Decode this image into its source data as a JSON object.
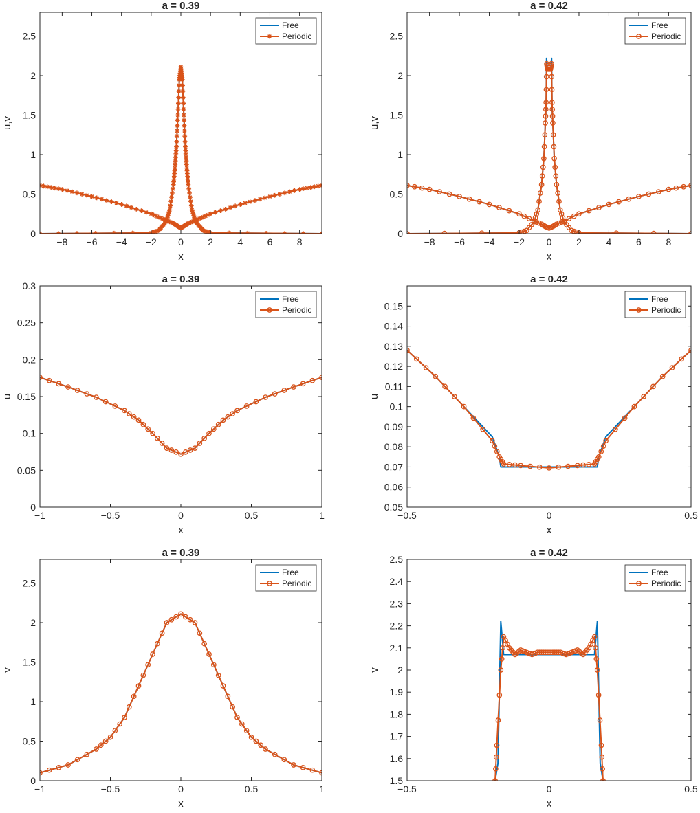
{
  "colors": {
    "free": "#0072BD",
    "periodic": "#D95319",
    "axes": "#262626",
    "background": "#ffffff"
  },
  "chart_data": [
    {
      "type": "line",
      "title": "a = 0.39",
      "xlabel": "x",
      "ylabel": "u,v",
      "xlim": [
        -9.5,
        9.5
      ],
      "ylim": [
        0,
        2.8
      ],
      "xticks": [
        -8,
        -6,
        -4,
        -2,
        0,
        2,
        4,
        6,
        8
      ],
      "yticks": [
        0,
        0.5,
        1,
        1.5,
        2,
        2.5
      ],
      "grid": false,
      "legend_position": "top-right",
      "legend": [
        "Free",
        "Periodic"
      ],
      "series": [
        {
          "name": "Free",
          "marker": "none",
          "curves": [
            {
              "x": [
                -9.5,
                -8,
                -6,
                -4,
                -2,
                -1,
                -0.5,
                -0.25,
                0,
                0.25,
                0.5,
                1,
                2,
                4,
                6,
                8,
                9.5
              ],
              "y": [
                0.61,
                0.56,
                0.47,
                0.37,
                0.25,
                0.17,
                0.13,
                0.1,
                0.07,
                0.1,
                0.13,
                0.17,
                0.25,
                0.37,
                0.47,
                0.56,
                0.61
              ]
            },
            {
              "x": [
                -9.5,
                -2,
                -1.5,
                -1,
                -0.75,
                -0.5,
                -0.4,
                -0.3,
                -0.2,
                -0.1,
                0,
                0.1,
                0.2,
                0.3,
                0.4,
                0.5,
                0.75,
                1,
                1.5,
                2,
                9.5
              ],
              "y": [
                0,
                0.01,
                0.04,
                0.15,
                0.3,
                0.62,
                0.83,
                1.1,
                1.5,
                1.95,
                2.11,
                1.95,
                1.5,
                1.1,
                0.83,
                0.62,
                0.3,
                0.15,
                0.04,
                0.01,
                0
              ]
            }
          ]
        },
        {
          "name": "Periodic",
          "marker": "star",
          "curves": [
            {
              "x": [
                -9.5,
                -8,
                -6,
                -4,
                -2,
                -1,
                -0.5,
                -0.25,
                0,
                0.25,
                0.5,
                1,
                2,
                4,
                6,
                8,
                9.5
              ],
              "y": [
                0.61,
                0.56,
                0.47,
                0.37,
                0.25,
                0.17,
                0.13,
                0.1,
                0.07,
                0.1,
                0.13,
                0.17,
                0.25,
                0.37,
                0.47,
                0.56,
                0.61
              ]
            },
            {
              "x": [
                -9.5,
                -2,
                -1.5,
                -1,
                -0.75,
                -0.5,
                -0.4,
                -0.3,
                -0.2,
                -0.1,
                0,
                0.1,
                0.2,
                0.3,
                0.4,
                0.5,
                0.75,
                1,
                1.5,
                2,
                9.5
              ],
              "y": [
                0,
                0.01,
                0.04,
                0.15,
                0.3,
                0.62,
                0.83,
                1.1,
                1.5,
                1.95,
                2.11,
                1.95,
                1.5,
                1.1,
                0.83,
                0.62,
                0.3,
                0.15,
                0.04,
                0.01,
                0
              ]
            }
          ]
        }
      ]
    },
    {
      "type": "line",
      "title": "a = 0.42",
      "xlabel": "x",
      "ylabel": "u,v",
      "xlim": [
        -9.5,
        9.5
      ],
      "ylim": [
        0,
        2.8
      ],
      "xticks": [
        -8,
        -6,
        -4,
        -2,
        0,
        2,
        4,
        6,
        8
      ],
      "yticks": [
        0,
        0.5,
        1,
        1.5,
        2,
        2.5
      ],
      "grid": false,
      "legend_position": "top-right",
      "legend": [
        "Free",
        "Periodic"
      ],
      "series": [
        {
          "name": "Free",
          "marker": "none",
          "curves": [
            {
              "x": [
                -9.5,
                -8,
                -6,
                -4,
                -2,
                -1,
                -0.5,
                -0.25,
                0,
                0.25,
                0.5,
                1,
                2,
                4,
                6,
                8,
                9.5
              ],
              "y": [
                0.61,
                0.56,
                0.47,
                0.37,
                0.25,
                0.16,
                0.12,
                0.09,
                0.07,
                0.09,
                0.12,
                0.16,
                0.25,
                0.37,
                0.47,
                0.56,
                0.61
              ]
            },
            {
              "x": [
                -9.5,
                -2,
                -1.5,
                -1,
                -0.75,
                -0.5,
                -0.35,
                -0.25,
                -0.2,
                -0.17,
                -0.1,
                0,
                0.1,
                0.17,
                0.2,
                0.25,
                0.35,
                0.5,
                0.75,
                1,
                1.5,
                2,
                9.5
              ],
              "y": [
                0,
                0.01,
                0.04,
                0.15,
                0.3,
                0.62,
                0.95,
                1.4,
                1.6,
                2.22,
                2.07,
                2.07,
                2.07,
                2.22,
                1.6,
                1.4,
                0.95,
                0.62,
                0.3,
                0.15,
                0.04,
                0.01,
                0
              ]
            }
          ]
        },
        {
          "name": "Periodic",
          "marker": "circle",
          "curves": [
            {
              "x": [
                -9.5,
                -8,
                -6,
                -4,
                -2,
                -1,
                -0.5,
                -0.25,
                0,
                0.25,
                0.5,
                1,
                2,
                4,
                6,
                8,
                9.5
              ],
              "y": [
                0.61,
                0.56,
                0.47,
                0.37,
                0.25,
                0.16,
                0.12,
                0.09,
                0.07,
                0.09,
                0.12,
                0.16,
                0.25,
                0.37,
                0.47,
                0.56,
                0.61
              ]
            },
            {
              "x": [
                -9.5,
                -2,
                -1.5,
                -1,
                -0.75,
                -0.5,
                -0.35,
                -0.25,
                -0.2,
                -0.16,
                -0.1,
                0,
                0.1,
                0.16,
                0.2,
                0.25,
                0.35,
                0.5,
                0.75,
                1,
                1.5,
                2,
                9.5
              ],
              "y": [
                0,
                0.01,
                0.04,
                0.15,
                0.3,
                0.62,
                0.95,
                1.4,
                1.66,
                2.15,
                2.08,
                2.08,
                2.08,
                2.15,
                1.66,
                1.4,
                0.95,
                0.62,
                0.3,
                0.15,
                0.04,
                0.01,
                0
              ]
            }
          ]
        }
      ]
    },
    {
      "type": "line",
      "title": "a = 0.39",
      "xlabel": "x",
      "ylabel": "u",
      "xlim": [
        -1,
        1
      ],
      "ylim": [
        0,
        0.3
      ],
      "xticks": [
        -1,
        -0.5,
        0,
        0.5,
        1
      ],
      "yticks": [
        0,
        0.05,
        0.1,
        0.15,
        0.2,
        0.25,
        0.3
      ],
      "grid": false,
      "legend_position": "top-right",
      "legend": [
        "Free",
        "Periodic"
      ],
      "series": [
        {
          "name": "Free",
          "marker": "none",
          "curves": [
            {
              "x": [
                -1,
                -0.8,
                -0.6,
                -0.4,
                -0.3,
                -0.2,
                -0.1,
                0,
                0.1,
                0.2,
                0.3,
                0.4,
                0.6,
                0.8,
                1
              ],
              "y": [
                0.176,
                0.163,
                0.149,
                0.131,
                0.118,
                0.1,
                0.08,
                0.072,
                0.08,
                0.1,
                0.118,
                0.131,
                0.149,
                0.163,
                0.176
              ]
            }
          ]
        },
        {
          "name": "Periodic",
          "marker": "circle",
          "curves": [
            {
              "x": [
                -1,
                -0.8,
                -0.6,
                -0.4,
                -0.3,
                -0.2,
                -0.1,
                0,
                0.1,
                0.2,
                0.3,
                0.4,
                0.6,
                0.8,
                1
              ],
              "y": [
                0.176,
                0.163,
                0.149,
                0.131,
                0.118,
                0.1,
                0.08,
                0.072,
                0.08,
                0.1,
                0.118,
                0.131,
                0.149,
                0.163,
                0.176
              ]
            }
          ]
        }
      ]
    },
    {
      "type": "line",
      "title": "a = 0.42",
      "xlabel": "x",
      "ylabel": "u",
      "xlim": [
        -0.5,
        0.5
      ],
      "ylim": [
        0.05,
        0.16
      ],
      "xticks": [
        -0.5,
        0,
        0.5
      ],
      "yticks": [
        0.05,
        0.06,
        0.07,
        0.08,
        0.09,
        0.1,
        0.11,
        0.12,
        0.13,
        0.14,
        0.15
      ],
      "grid": false,
      "legend_position": "top-right",
      "legend": [
        "Free",
        "Periodic"
      ],
      "series": [
        {
          "name": "Free",
          "marker": "none",
          "curves": [
            {
              "x": [
                -0.5,
                -0.4,
                -0.3,
                -0.2,
                -0.175,
                -0.17,
                -0.1,
                0,
                0.1,
                0.17,
                0.175,
                0.2,
                0.3,
                0.4,
                0.5
              ],
              "y": [
                0.128,
                0.115,
                0.1,
                0.085,
                0.075,
                0.07,
                0.07,
                0.07,
                0.07,
                0.07,
                0.075,
                0.085,
                0.1,
                0.115,
                0.128
              ]
            }
          ]
        },
        {
          "name": "Periodic",
          "marker": "circle",
          "curves": [
            {
              "x": [
                -0.5,
                -0.4,
                -0.3,
                -0.2,
                -0.175,
                -0.16,
                -0.1,
                0,
                0.1,
                0.16,
                0.175,
                0.2,
                0.3,
                0.4,
                0.5
              ],
              "y": [
                0.128,
                0.115,
                0.1,
                0.083,
                0.075,
                0.0715,
                0.0707,
                0.0695,
                0.0707,
                0.0715,
                0.075,
                0.083,
                0.1,
                0.115,
                0.128
              ]
            }
          ]
        }
      ]
    },
    {
      "type": "line",
      "title": "a = 0.39",
      "xlabel": "x",
      "ylabel": "v",
      "xlim": [
        -1,
        1
      ],
      "ylim": [
        0,
        2.8
      ],
      "xticks": [
        -1,
        -0.5,
        0,
        0.5,
        1
      ],
      "yticks": [
        0,
        0.5,
        1,
        1.5,
        2,
        2.5
      ],
      "grid": false,
      "legend_position": "top-right",
      "legend": [
        "Free",
        "Periodic"
      ],
      "series": [
        {
          "name": "Free",
          "marker": "none",
          "curves": [
            {
              "x": [
                -1,
                -0.8,
                -0.6,
                -0.5,
                -0.4,
                -0.3,
                -0.2,
                -0.1,
                0,
                0.1,
                0.2,
                0.3,
                0.4,
                0.5,
                0.6,
                0.8,
                1
              ],
              "y": [
                0.1,
                0.2,
                0.4,
                0.55,
                0.8,
                1.2,
                1.6,
                2.0,
                2.11,
                2.0,
                1.6,
                1.2,
                0.8,
                0.55,
                0.4,
                0.2,
                0.1
              ]
            }
          ]
        },
        {
          "name": "Periodic",
          "marker": "circle",
          "curves": [
            {
              "x": [
                -1,
                -0.8,
                -0.6,
                -0.5,
                -0.4,
                -0.3,
                -0.2,
                -0.1,
                0,
                0.1,
                0.2,
                0.3,
                0.4,
                0.5,
                0.6,
                0.8,
                1
              ],
              "y": [
                0.1,
                0.2,
                0.4,
                0.55,
                0.8,
                1.2,
                1.6,
                2.0,
                2.11,
                2.0,
                1.6,
                1.2,
                0.8,
                0.55,
                0.4,
                0.2,
                0.1
              ]
            }
          ]
        }
      ]
    },
    {
      "type": "line",
      "title": "a = 0.42",
      "xlabel": "x",
      "ylabel": "v",
      "xlim": [
        -0.5,
        0.5
      ],
      "ylim": [
        1.5,
        2.5
      ],
      "xticks": [
        -0.5,
        0,
        0.5
      ],
      "yticks": [
        1.5,
        1.6,
        1.7,
        1.8,
        1.9,
        2,
        2.1,
        2.2,
        2.3,
        2.4,
        2.5
      ],
      "grid": false,
      "legend_position": "top-right",
      "legend": [
        "Free",
        "Periodic"
      ],
      "series": [
        {
          "name": "Free",
          "marker": "none",
          "curves": [
            {
              "x": [
                -0.19,
                -0.18,
                -0.17,
                -0.16,
                -0.1,
                0,
                0.1,
                0.16,
                0.17,
                0.18,
                0.19
              ],
              "y": [
                1.5,
                1.58,
                2.22,
                2.07,
                2.07,
                2.07,
                2.07,
                2.07,
                2.22,
                1.58,
                1.5
              ]
            }
          ]
        },
        {
          "name": "Periodic",
          "marker": "circle",
          "curves": [
            {
              "x": [
                -0.19,
                -0.184,
                -0.17,
                -0.16,
                -0.14,
                -0.12,
                -0.1,
                -0.08,
                -0.06,
                -0.04,
                -0.02,
                0,
                0.02,
                0.04,
                0.06,
                0.08,
                0.1,
                0.12,
                0.14,
                0.16,
                0.17,
                0.184,
                0.19
              ],
              "y": [
                1.5,
                1.66,
                2.0,
                2.15,
                2.1,
                2.07,
                2.09,
                2.08,
                2.07,
                2.08,
                2.08,
                2.08,
                2.08,
                2.08,
                2.07,
                2.08,
                2.09,
                2.07,
                2.1,
                2.15,
                2.0,
                1.66,
                1.5
              ]
            }
          ]
        }
      ]
    }
  ]
}
